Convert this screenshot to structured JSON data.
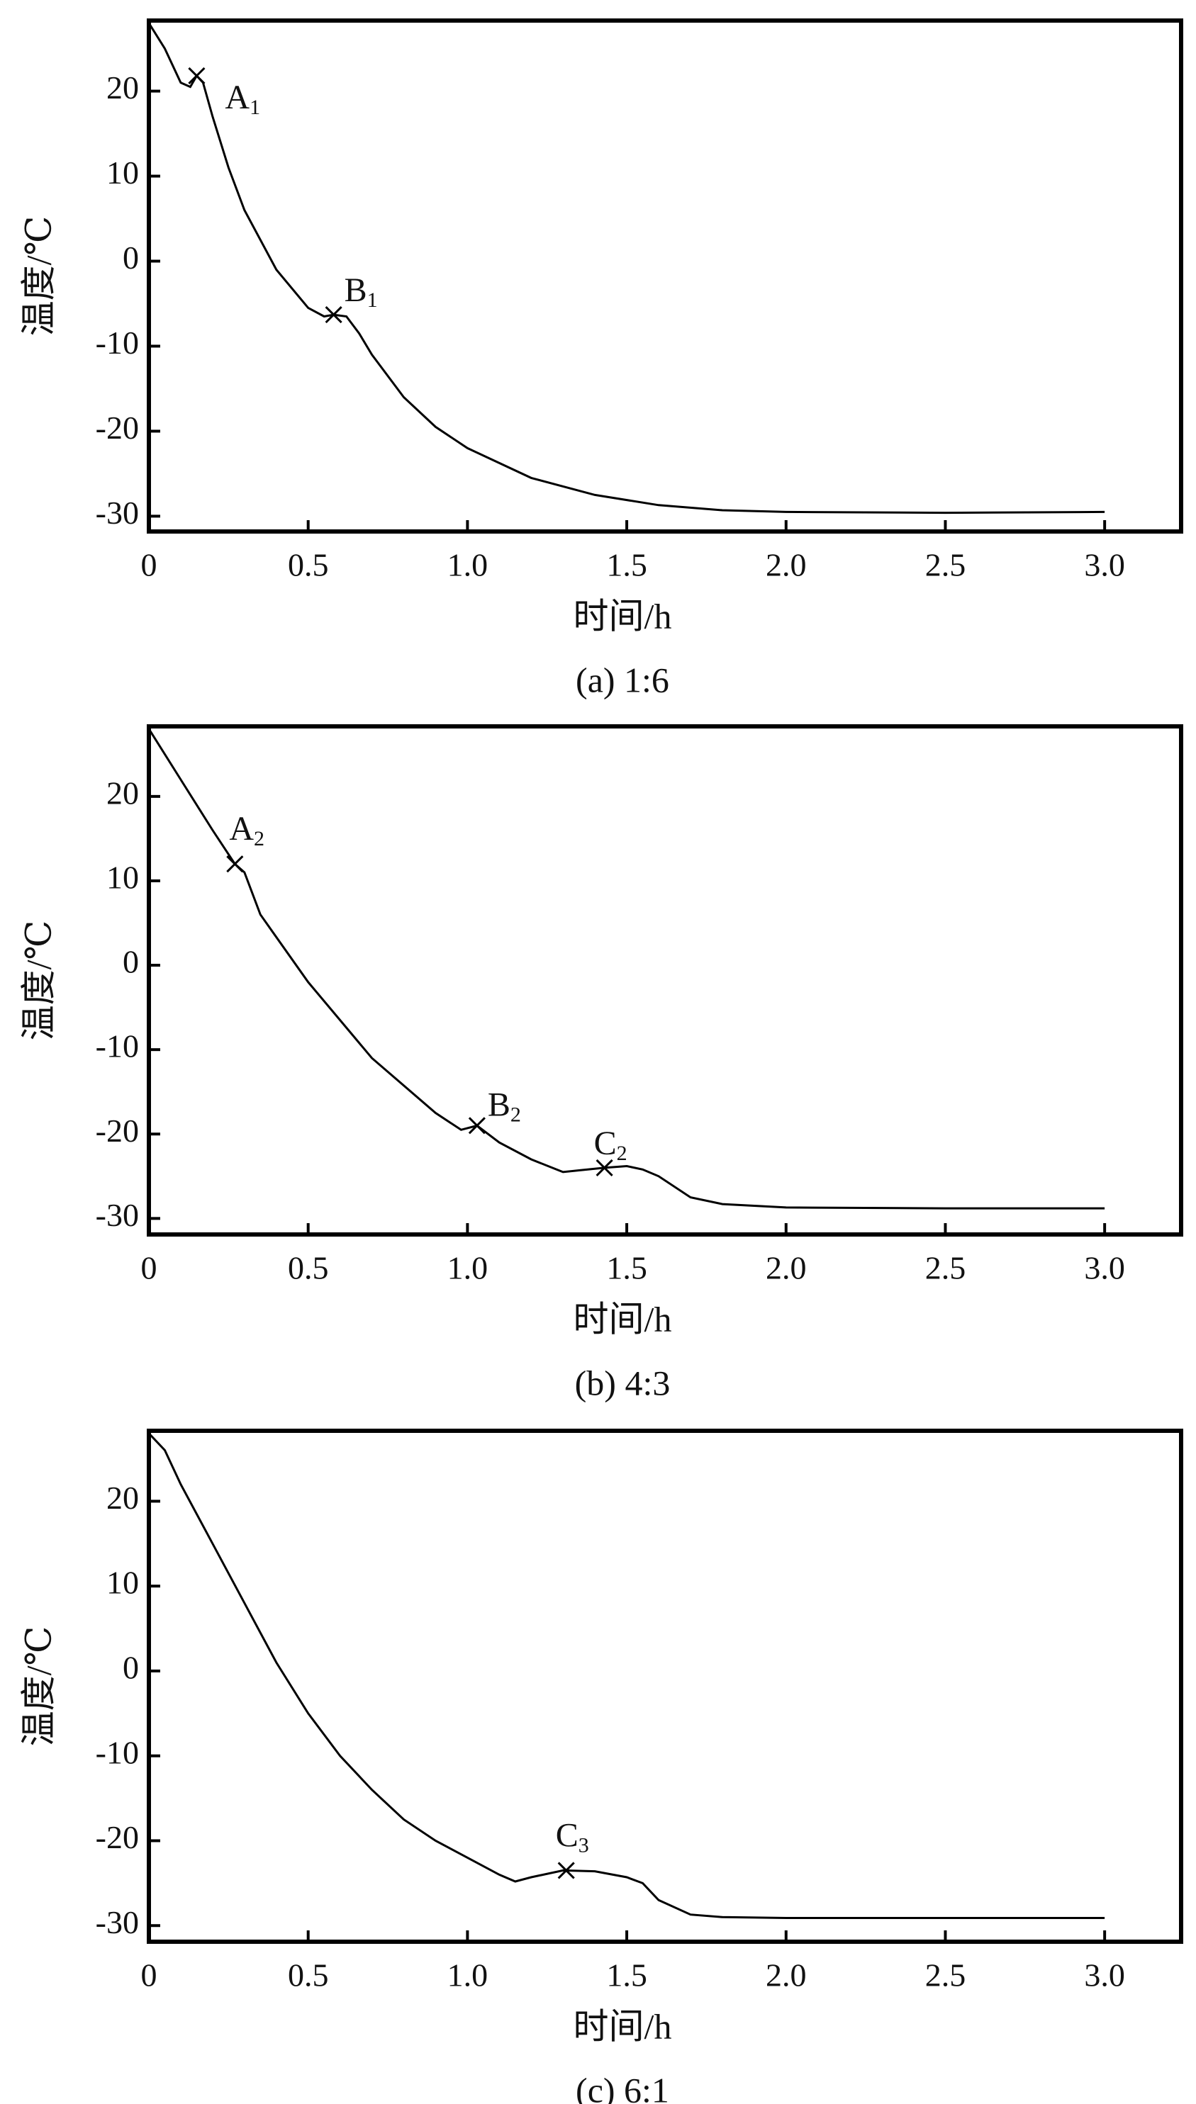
{
  "chart_data": [
    {
      "type": "line",
      "title": "(a) 1:6",
      "xlabel": "时间/h",
      "ylabel": "温度/℃",
      "color": "#000000",
      "x": [
        0,
        0.05,
        0.1,
        0.13,
        0.15,
        0.17,
        0.2,
        0.25,
        0.3,
        0.4,
        0.5,
        0.55,
        0.58,
        0.62,
        0.66,
        0.7,
        0.8,
        0.9,
        1.0,
        1.2,
        1.4,
        1.6,
        1.8,
        2.0,
        2.5,
        3.0
      ],
      "values": [
        28,
        25,
        21,
        20.5,
        21.8,
        21,
        17,
        11,
        6,
        -1,
        -5.5,
        -6.5,
        -6.3,
        -6.5,
        -8.5,
        -11,
        -16,
        -19.5,
        -22,
        -25.5,
        -27.5,
        -28.7,
        -29.3,
        -29.5,
        -29.6,
        -29.5
      ],
      "annotations": [
        {
          "text": "A",
          "sub": "1",
          "x": 0.15,
          "y": 21.8
        },
        {
          "text": "B",
          "sub": "1",
          "x": 0.58,
          "y": -6.3
        }
      ],
      "xlim": [
        0,
        3.24
      ],
      "ylim": [
        -31.8,
        28.3
      ],
      "xticks": [
        0,
        0.5,
        {
          "value": 1,
          "label": "1.0"
        },
        1.5,
        {
          "value": 2,
          "label": "2.0"
        },
        2.5,
        {
          "value": 3,
          "label": "3.0"
        }
      ],
      "yticks": [
        -30,
        -20,
        -10,
        0,
        10,
        20
      ]
    },
    {
      "type": "line",
      "title": "(b) 4:3",
      "xlabel": "时间/h",
      "ylabel": "温度/℃",
      "color": "#000000",
      "x": [
        0,
        0.1,
        0.2,
        0.27,
        0.3,
        0.35,
        0.5,
        0.7,
        0.9,
        0.98,
        1.03,
        1.1,
        1.2,
        1.3,
        1.35,
        1.43,
        1.5,
        1.55,
        1.6,
        1.7,
        1.8,
        2.0,
        2.5,
        3.0
      ],
      "values": [
        28,
        22,
        16,
        12,
        11,
        6,
        -2,
        -11,
        -17.5,
        -19.5,
        -19,
        -21,
        -23,
        -24.5,
        -24.3,
        -24,
        -23.8,
        -24.2,
        -25,
        -27.5,
        -28.3,
        -28.7,
        -28.8,
        -28.8
      ],
      "annotations": [
        {
          "text": "A",
          "sub": "2",
          "x": 0.27,
          "y": 12
        },
        {
          "text": "B",
          "sub": "2",
          "x": 1.03,
          "y": -19
        },
        {
          "text": "C",
          "sub": "2",
          "x": 1.43,
          "y": -24
        }
      ],
      "xlim": [
        0,
        3.24
      ],
      "ylim": [
        -31.9,
        28.3
      ],
      "xticks": [
        0,
        0.5,
        {
          "value": 1,
          "label": "1.0"
        },
        1.5,
        {
          "value": 2,
          "label": "2.0"
        },
        2.5,
        {
          "value": 3,
          "label": "3.0"
        }
      ],
      "yticks": [
        -30,
        -20,
        -10,
        0,
        10,
        20
      ]
    },
    {
      "type": "line",
      "title": "(c) 6:1",
      "xlabel": "时间/h",
      "ylabel": "温度/℃",
      "color": "#000000",
      "x": [
        0,
        0.05,
        0.1,
        0.2,
        0.3,
        0.4,
        0.5,
        0.6,
        0.7,
        0.8,
        0.9,
        1.0,
        1.1,
        1.15,
        1.2,
        1.3,
        1.4,
        1.5,
        1.55,
        1.6,
        1.7,
        1.8,
        2.0,
        2.5,
        3.0
      ],
      "values": [
        28,
        26,
        22,
        15,
        8,
        1,
        -5,
        -10,
        -14,
        -17.5,
        -20,
        -22,
        -24,
        -24.8,
        -24.3,
        -23.5,
        -23.6,
        -24.3,
        -25,
        -27,
        -28.7,
        -29,
        -29.1,
        -29.1,
        -29.1
      ],
      "annotations": [
        {
          "text": "C",
          "sub": "3",
          "x": 1.31,
          "y": -23.5
        }
      ],
      "xlim": [
        0,
        3.24
      ],
      "ylim": [
        -31.9,
        28.3
      ],
      "xticks": [
        0,
        0.5,
        {
          "value": 1,
          "label": "1.0"
        },
        1.5,
        {
          "value": 2,
          "label": "2.0"
        },
        2.5,
        {
          "value": 3,
          "label": "3.0"
        }
      ],
      "yticks": [
        -30,
        -20,
        -10,
        0,
        10,
        20
      ]
    }
  ]
}
